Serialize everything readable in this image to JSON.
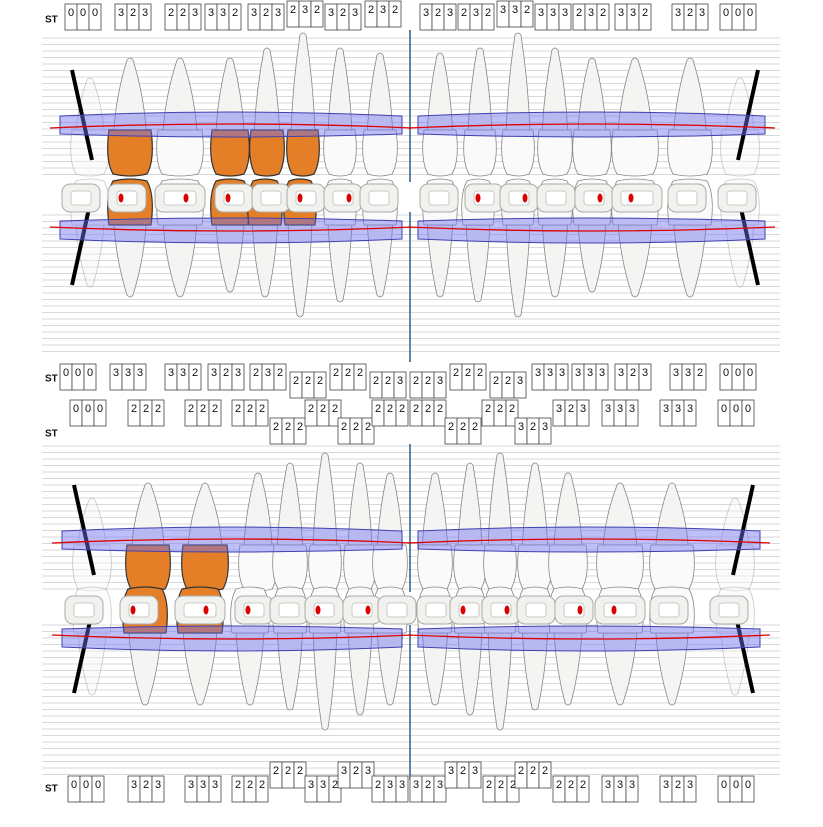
{
  "rows": [
    {
      "label": "ST",
      "boxes": [
        [
          0,
          0,
          0
        ],
        [
          3,
          2,
          3
        ],
        [
          2,
          2,
          3
        ],
        [
          3,
          3,
          2
        ],
        [
          3,
          2,
          3
        ],
        [
          2,
          3,
          2
        ],
        [
          3,
          2,
          3
        ],
        [
          2,
          3,
          2
        ],
        [
          3,
          2,
          3
        ],
        [
          2,
          3,
          2
        ],
        [
          3,
          3,
          2
        ],
        [
          3,
          3,
          3
        ],
        [
          2,
          3,
          2
        ],
        [
          3,
          3,
          2
        ],
        [
          3,
          2,
          3
        ],
        [
          0,
          0,
          0
        ]
      ]
    },
    {
      "label": "ST",
      "boxes": [
        [
          0,
          0,
          0
        ],
        [
          3,
          3,
          3
        ],
        [
          3,
          3,
          2
        ],
        [
          3,
          2,
          3
        ],
        [
          2,
          3,
          2
        ],
        [
          2,
          2,
          2
        ],
        [
          2,
          2,
          2
        ],
        [
          2,
          2,
          3
        ],
        [
          2,
          2,
          3
        ],
        [
          2,
          2,
          2
        ],
        [
          2,
          2,
          3
        ],
        [
          3,
          3,
          3
        ],
        [
          3,
          3,
          3
        ],
        [
          3,
          2,
          3
        ],
        [
          3,
          3,
          2
        ],
        [
          0,
          0,
          0
        ]
      ]
    },
    {
      "label": "ST",
      "boxes": [
        [
          0,
          0,
          0
        ],
        [
          2,
          2,
          2
        ],
        [
          2,
          2,
          2
        ],
        [
          2,
          2,
          2
        ],
        [
          2,
          2,
          2
        ],
        [
          2,
          2,
          2
        ],
        [
          2,
          2,
          2
        ],
        [
          2,
          2,
          2
        ],
        [
          2,
          2,
          2
        ],
        [
          2,
          2,
          2
        ],
        [
          2,
          2,
          2
        ],
        [
          3,
          2,
          3
        ],
        [
          3,
          2,
          3
        ],
        [
          3,
          3,
          3
        ],
        [
          3,
          3,
          3
        ],
        [
          0,
          0,
          0
        ]
      ]
    },
    {
      "label": "ST",
      "boxes": [
        [
          0,
          0,
          0
        ],
        [
          3,
          2,
          3
        ],
        [
          3,
          3,
          3
        ],
        [
          2,
          2,
          2
        ],
        [
          2,
          2,
          2
        ],
        [
          3,
          3,
          2
        ],
        [
          3,
          2,
          3
        ],
        [
          2,
          3,
          3
        ],
        [
          3,
          2,
          3
        ],
        [
          3,
          2,
          3
        ],
        [
          2,
          2,
          2
        ],
        [
          2,
          2,
          2
        ],
        [
          2,
          2,
          2
        ],
        [
          3,
          3,
          3
        ],
        [
          3,
          2,
          3
        ],
        [
          0,
          0,
          0
        ]
      ]
    }
  ]
}
